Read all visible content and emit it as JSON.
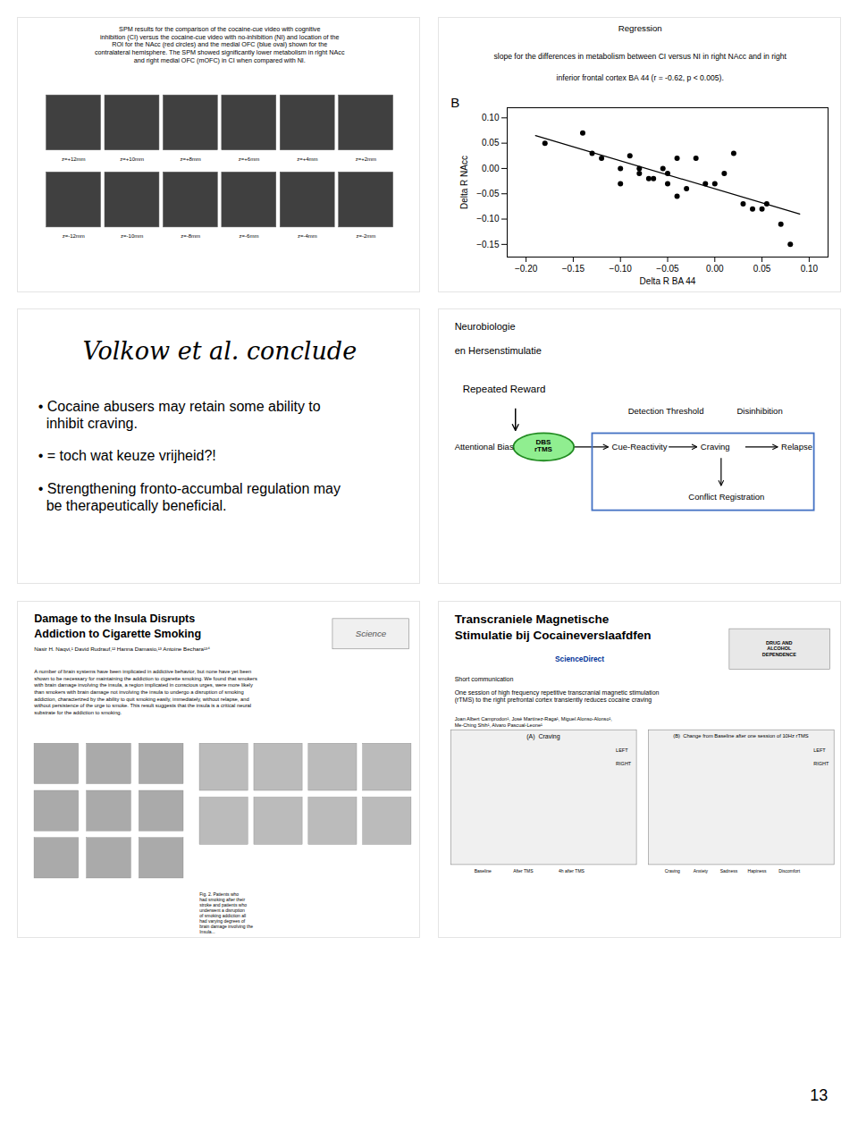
{
  "chart_data": {
    "type": "scatter",
    "title": "Regression",
    "subtitle": "slope for the differences in metabolism between CI versus NI in right NAcc and in right\ninferior frontal cortex BA 44 (r = -0.62, p < 0.005).",
    "xlabel": "Delta R BA 44",
    "ylabel": "Delta R NAcc",
    "xlim": [
      -0.22,
      0.12
    ],
    "ylim": [
      -0.175,
      0.12
    ],
    "xticks": [
      {
        "value": -0.2,
        "label": "−0.20"
      },
      {
        "value": -0.15,
        "label": "−0.15"
      },
      {
        "value": -0.1,
        "label": "−0.10"
      },
      {
        "value": -0.05,
        "label": "−0.05"
      },
      {
        "value": 0,
        "label": "0.00"
      },
      0.05,
      {
        "value": 0.1,
        "label": "0.10"
      }
    ],
    "yticks": [
      {
        "value": -0.15,
        "label": "−0.15"
      },
      {
        "value": -0.1,
        "label": "−0.10"
      },
      {
        "value": -0.05,
        "label": "−0.05"
      },
      {
        "value": 0,
        "label": "0.00"
      },
      0.05,
      {
        "value": 0.1,
        "label": "0.10"
      }
    ],
    "series": [
      {
        "type": "scatter",
        "color": "#000000",
        "x": [
          -0.18,
          -0.14,
          -0.13,
          -0.12,
          -0.1,
          -0.1,
          -0.09,
          -0.08,
          -0.08,
          -0.07,
          -0.065,
          -0.055,
          -0.05,
          -0.05,
          -0.04,
          -0.04,
          -0.03,
          -0.02,
          -0.01,
          0.0,
          0.01,
          0.02,
          0.03,
          0.04,
          0.05,
          0.055,
          0.07,
          0.08
        ],
        "values": [
          0.05,
          0.07,
          0.03,
          0.02,
          0.0,
          -0.03,
          0.025,
          0.0,
          -0.01,
          -0.02,
          -0.02,
          0.0,
          -0.01,
          -0.03,
          0.02,
          -0.055,
          -0.04,
          0.02,
          -0.03,
          -0.03,
          -0.01,
          0.03,
          -0.07,
          -0.08,
          -0.08,
          -0.07,
          -0.11,
          -0.15
        ]
      },
      {
        "type": "line",
        "color": "#000000",
        "x": [
          -0.19,
          0.09
        ],
        "values": [
          0.065,
          -0.09
        ]
      }
    ],
    "annotations": [
      "SPM results for the comparison of the cocaine-cue video with cognitive\ninhibition (CI) versus the cocaine-cue video with no-inhibition (NI) and location of the\nROI for the NAcc (red circles) and the medial OFC (blue oval) shown for the\ncontralateral hemisphere. The SPM showed significantly lower metabolism in right NAcc\nand right medial OFC (mOFC) in CI when compared with NI.",
      "z=+12mm",
      "z=+10mm",
      "z=+8mm",
      "z=+6mm",
      "z=+4mm",
      "z=+2mm",
      "z=-12mm",
      "z=-10mm",
      "z=-8mm",
      "z=-6mm",
      "z=-4mm",
      "z=-2mm",
      "B",
      "Volkow et al. conclude",
      "• Cocaine abusers may retain some ability to\n  inhibit craving.",
      "• = toch wat keuze vrijheid?!",
      "• Strengthening fronto-accumbal regulation may\n  be therapeutically beneficial.",
      "Neurobiologie",
      "en Hersenstimulatie",
      "Repeated Reward",
      "DBS\nrTMS",
      "Detection Threshold",
      "Disinhibition",
      "Attentional Bias",
      "Cue-Reactivity",
      "Craving",
      "Relapse",
      "Conflict Registration",
      "Damage to the Insula Disrupts\nAddiction to Cigarette Smoking",
      "Nasir H. Naqvi,¹ David Rudrauf,¹² Hanna Damasio,¹³ Antoine Bechara¹³⁴",
      "Science",
      "A number of brain systems have been implicated in addictive behavior, but none have yet been\nshown to be necessary for maintaining the addiction to cigarette smoking. We found that smokers\nwith brain damage involving the insula, a region implicated in conscious urges, were more likely\nthan smokers with brain damage not involving the insula to undergo a disruption of smoking\naddiction, characterized by the ability to quit smoking easily, immediately, without relapse, and\nwithout persistence of the urge to smoke. This result suggests that the insula is a critical neural\nsubstrate for the addiction to smoking.",
      "Fig. 2. Patients who\nhad smoking after their\nstroke and patients who\nunderwent a disruption\nof smoking addiction all\nhad varying degrees of\nbrain damage involving the\nInsula...",
      "Transcraniele Magnetische\nStimulatie bij Cocaineverslaafdfen",
      "ScienceDirect",
      "DRUG AND\nALCOHOL\nDEPENDENCE",
      "Short communication",
      "One session of high frequency repetitive transcranial magnetic stimulation\n(rTMS) to the right prefrontal cortex transiently reduces cocaine craving",
      "Joan Albert Camprodon¹, José Martínez-Raga¹, Miguel Alonso-Alonso¹,\nMe-Ching Shih¹, Alvaro Pascual-Leone¹",
      "(A)  Craving",
      "(B)  Change from Baseline after one session of 10Hz rTMS",
      "Baseline",
      "After TMS",
      "4h after TMS",
      "Craving",
      "Anxiety",
      "Sadness",
      "Hapiness",
      "Discomfort",
      "LEFT",
      "RIGHT",
      "LEFT",
      "RIGHT",
      "13"
    ]
  }
}
